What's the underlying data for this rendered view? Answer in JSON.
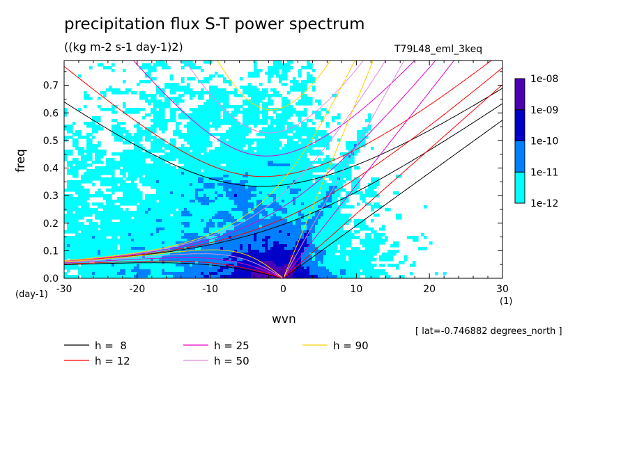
{
  "header": {
    "title": "precipitation flux S-T power spectrum",
    "subtitle": "((kg m-2 s-1 day-1)2)",
    "run_label": "T79L48_eml_3keq"
  },
  "footer": {
    "lat_note": "[ lat=-0.746882 degrees_north ]"
  },
  "chart_data": {
    "type": "heatmap",
    "title": "precipitation flux S-T power spectrum",
    "subtitle": "((kg m-2 s-1 day-1)2)",
    "xlabel": "wvn",
    "xunit": "(1)",
    "ylabel": "freq",
    "yunit": "(day-1)",
    "xlim": [
      -30,
      30
    ],
    "ylim": [
      0,
      0.79
    ],
    "xticks": [
      -30,
      -20,
      -10,
      0,
      10,
      20,
      30
    ],
    "xtick_labels": [
      "-30",
      "-20",
      "-10",
      "0",
      "10",
      "20",
      "30"
    ],
    "yticks": [
      0.0,
      0.1,
      0.2,
      0.3,
      0.4,
      0.5,
      0.6,
      0.7
    ],
    "ytick_labels": [
      "0.0",
      "0.1",
      "0.2",
      "0.3",
      "0.4",
      "0.5",
      "0.6",
      "0.7"
    ],
    "colorbar": {
      "levels": [
        "1e-12",
        "1e-11",
        "1e-10",
        "1e-09",
        "1e-08"
      ],
      "colors": [
        "#00ffff",
        "#0080ff",
        "#0000c8",
        "#4b00b4"
      ]
    },
    "dispersion_curves": {
      "legend": [
        {
          "label": "h =  8",
          "h": 8,
          "color": "#000000"
        },
        {
          "label": "h = 12",
          "h": 12,
          "color": "#ff0000"
        },
        {
          "label": "h = 25",
          "h": 25,
          "color": "#e600c8"
        },
        {
          "label": "h = 50",
          "h": 50,
          "color": "#e08ce0"
        },
        {
          "label": "h = 90",
          "h": 90,
          "color": "#ffd200"
        }
      ],
      "families": [
        "kelvin",
        "inertio-gravity n=0",
        "inertio-gravity n=1",
        "rossby n=1"
      ]
    }
  }
}
